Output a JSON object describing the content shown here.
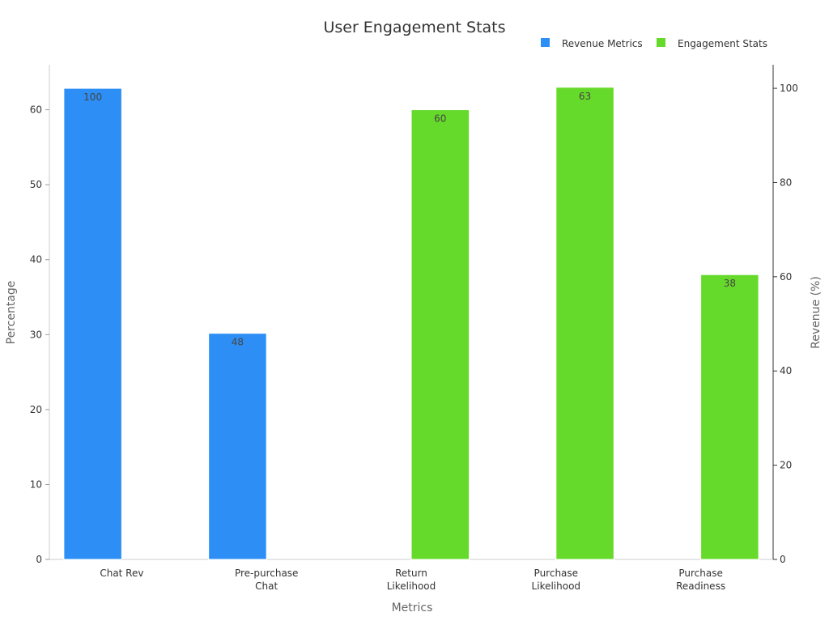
{
  "chart_data": {
    "type": "bar",
    "title": "User Engagement Stats",
    "xlabel": "Metrics",
    "ylabel": "Percentage",
    "y2label": "Revenue (%)",
    "categories": [
      [
        "Chat Rev"
      ],
      [
        "Pre-purchase",
        "Chat"
      ],
      [
        "Return",
        "Likelihood"
      ],
      [
        "Purchase",
        "Likelihood"
      ],
      [
        "Purchase",
        "Readiness"
      ]
    ],
    "ylim": [
      0,
      66
    ],
    "y2lim": [
      0,
      105
    ],
    "yticks": [
      0,
      10,
      20,
      30,
      40,
      50,
      60
    ],
    "y2ticks": [
      0,
      20,
      40,
      60,
      80,
      100
    ],
    "legend_position": "top-right",
    "series": [
      {
        "name": "Revenue Metrics",
        "color": "#2d8ff5",
        "axis": "right",
        "slot": 0,
        "values": [
          100,
          48,
          null,
          null,
          null
        ]
      },
      {
        "name": "Engagement Stats",
        "color": "#66da2a",
        "axis": "left",
        "slot": 1,
        "values": [
          null,
          null,
          60,
          63,
          38
        ]
      }
    ]
  }
}
